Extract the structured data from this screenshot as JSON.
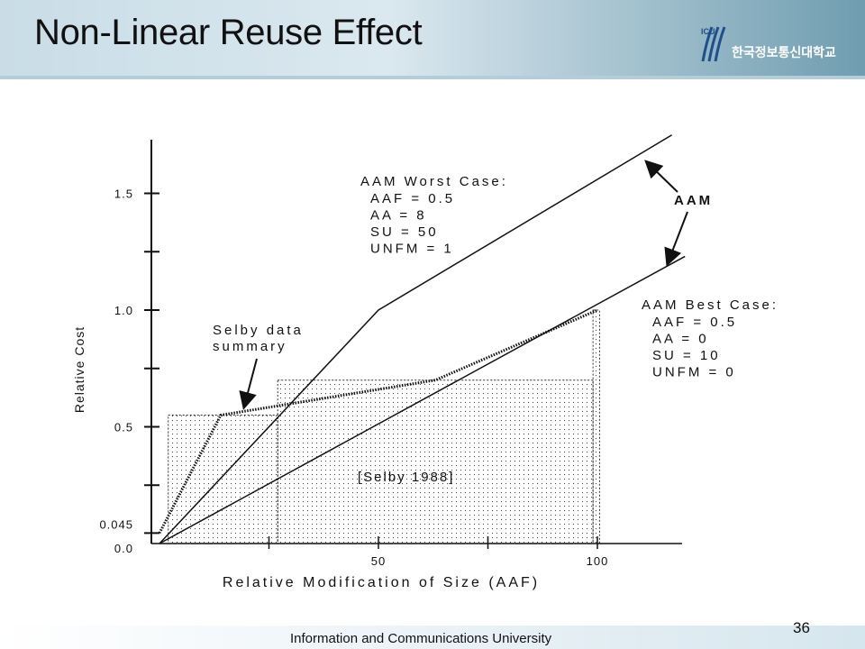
{
  "slide": {
    "title": "Non-Linear Reuse Effect",
    "logo_text": "한국정보통신대학교",
    "logo_abbr": "ICU",
    "footer": "Information and Communications University",
    "page_number": "36"
  },
  "chart_data": {
    "type": "line",
    "xlabel": "Relative Modification of Size (AAF)",
    "ylabel": "Relative Cost",
    "x_ticks": [
      {
        "value": 50,
        "label": "50"
      },
      {
        "value": 100,
        "label": "100"
      }
    ],
    "y_ticks": [
      {
        "value": 0.0,
        "label": "0.0"
      },
      {
        "value": 0.045,
        "label": "0.045"
      },
      {
        "value": 0.5,
        "label": "0.5"
      },
      {
        "value": 1.0,
        "label": "1.0"
      },
      {
        "value": 1.5,
        "label": "1.5"
      }
    ],
    "xlim": [
      0,
      120
    ],
    "ylim": [
      0,
      1.75
    ],
    "series": [
      {
        "name": "AAM Worst Case",
        "x": [
          0,
          50,
          117
        ],
        "y": [
          0,
          1.0,
          1.75
        ],
        "style": "solid"
      },
      {
        "name": "AAM Best Case",
        "x": [
          0,
          120
        ],
        "y": [
          0,
          1.23
        ],
        "style": "solid"
      },
      {
        "name": "Selby data summary",
        "x": [
          0,
          14,
          63,
          100
        ],
        "y": [
          0.045,
          0.55,
          0.7,
          1.0
        ],
        "style": "dotted"
      }
    ],
    "selby_bars": [
      {
        "x0": 2,
        "x1": 27,
        "y": 0.55
      },
      {
        "x0": 27,
        "x1": 99,
        "y": 0.7
      },
      {
        "x0": 99,
        "x1": 100.5,
        "y": 1.0
      }
    ],
    "annotations": {
      "worst_title": "AAM Worst Case:",
      "worst_params": [
        "AAF = 0.5",
        "AA = 8",
        "SU = 50",
        "UNFM = 1"
      ],
      "best_title": "AAM Best Case:",
      "best_params": [
        "AAF = 0.5",
        "AA = 0",
        "SU = 10",
        "UNFM = 0"
      ],
      "aam_label": "AAM",
      "selby_label": [
        "Selby data",
        "summary"
      ],
      "selby_ref": "[Selby 1988]"
    },
    "grid": false
  }
}
